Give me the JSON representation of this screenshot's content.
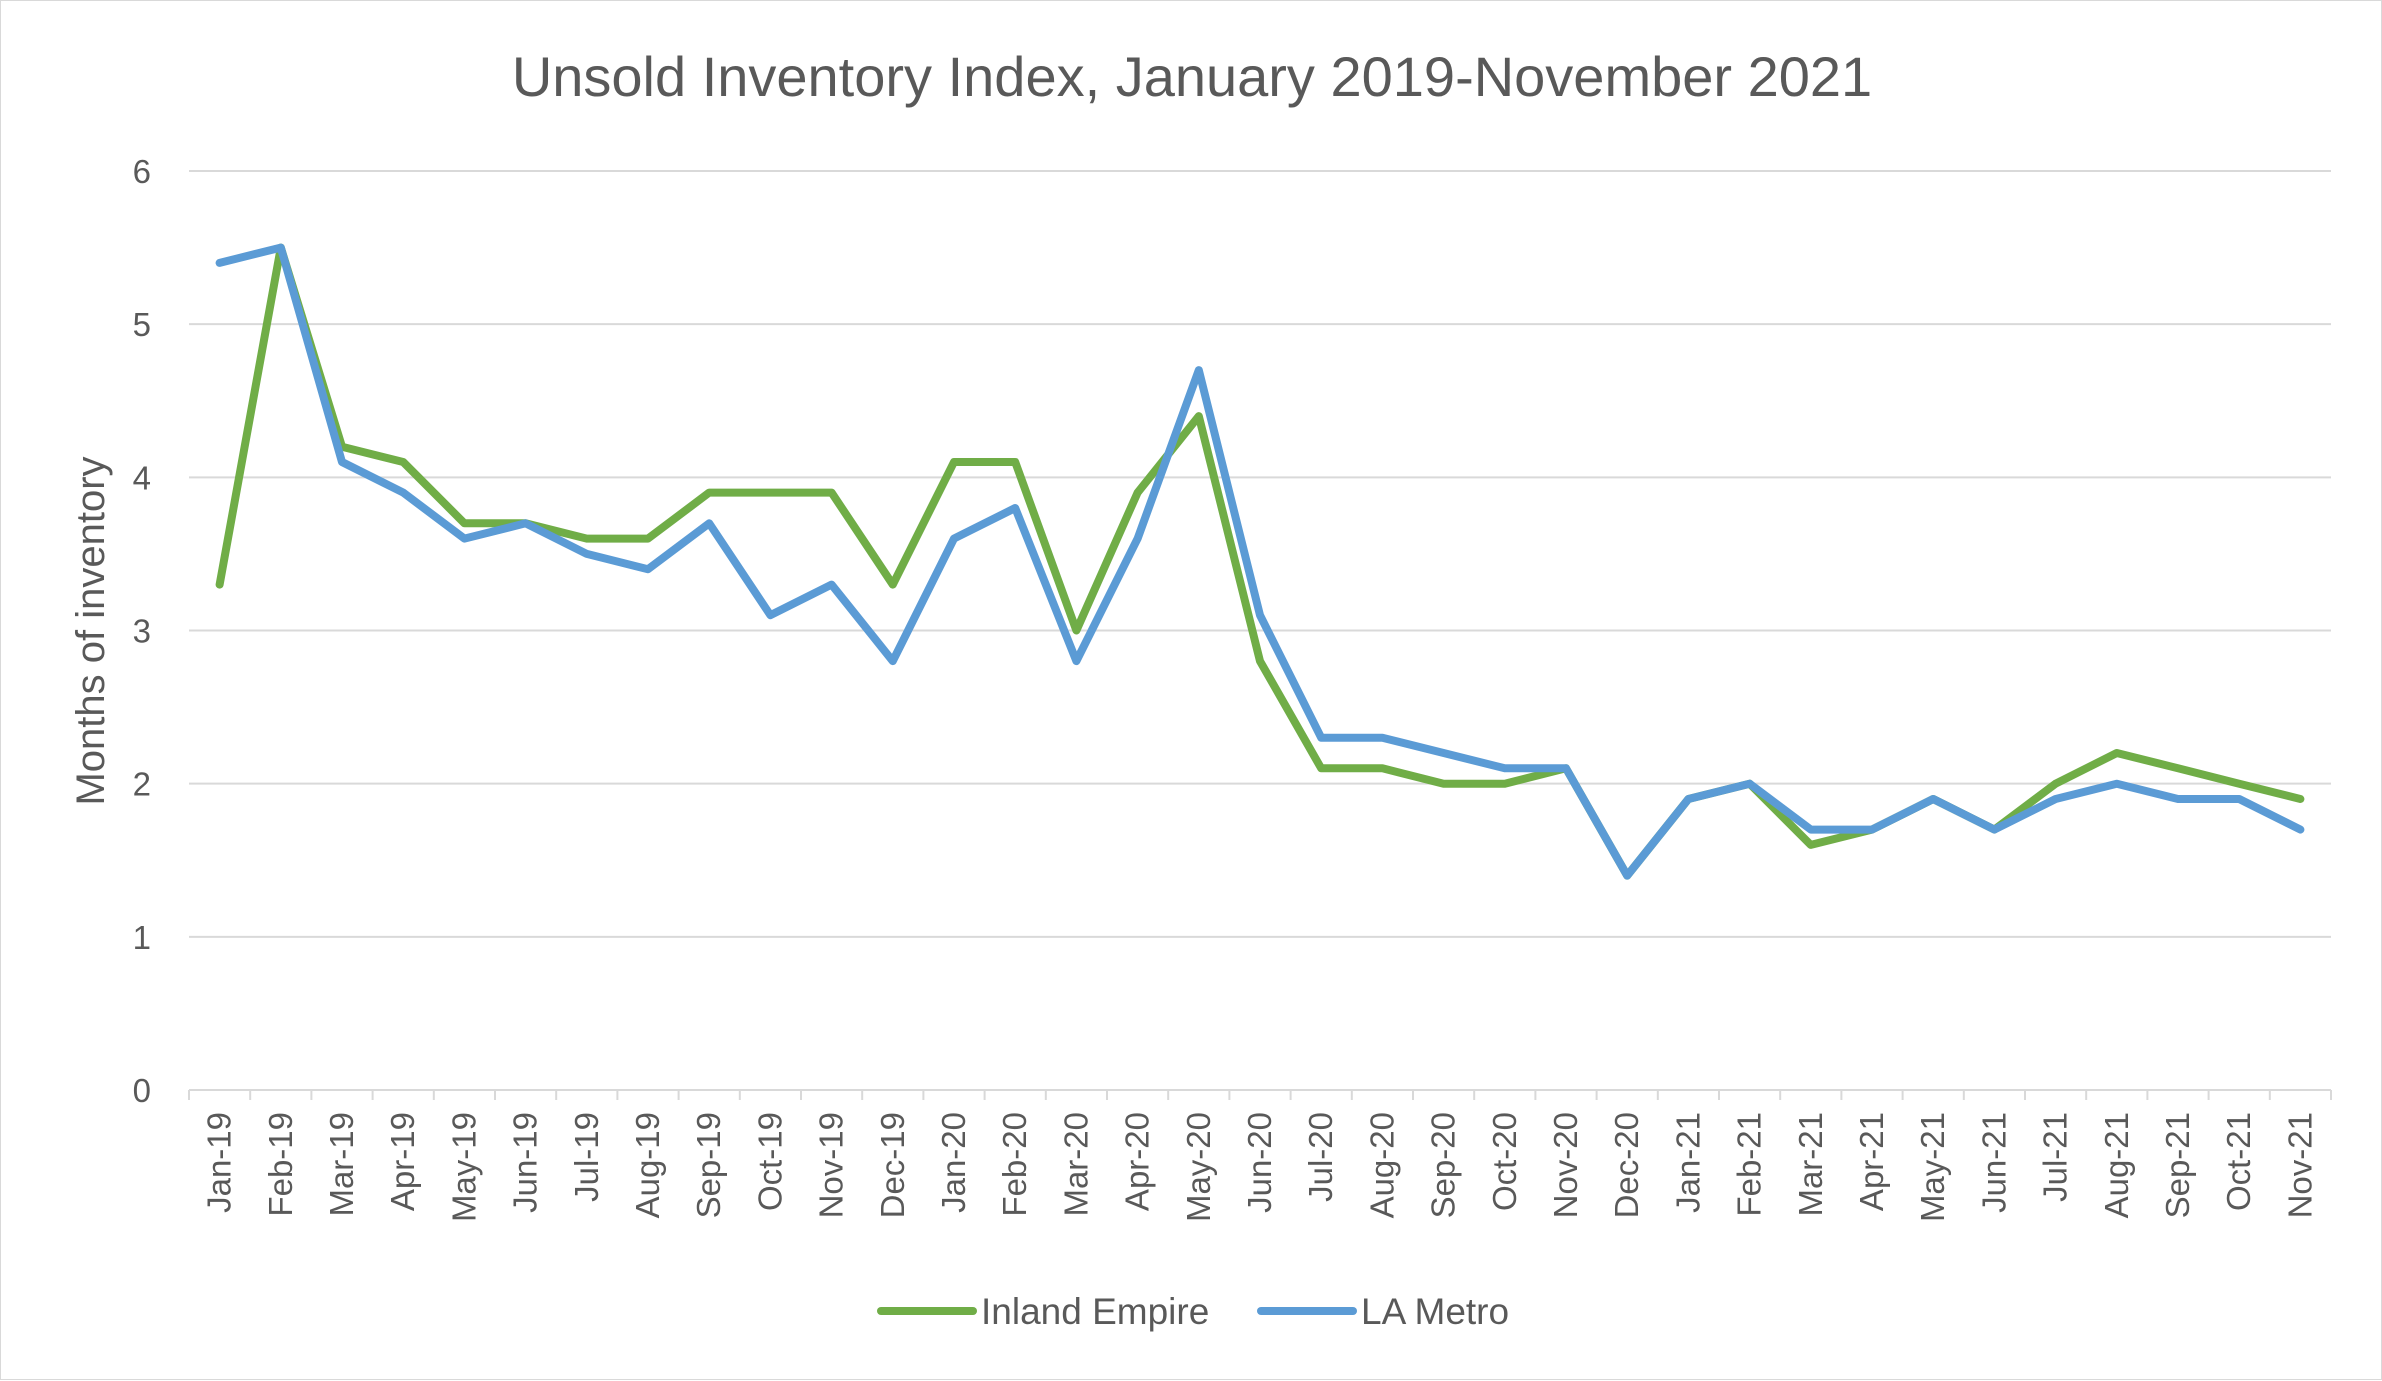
{
  "chart_data": {
    "type": "line",
    "title": "Unsold Inventory Index, January 2019-November 2021",
    "xlabel": "",
    "ylabel": "Months of inventory",
    "ylim": [
      0,
      6
    ],
    "yticks": [
      "0",
      "1",
      "2",
      "3",
      "4",
      "5",
      "6"
    ],
    "grid": true,
    "legend_position": "bottom",
    "categories": [
      "Jan-19",
      "Feb-19",
      "Mar-19",
      "Apr-19",
      "May-19",
      "Jun-19",
      "Jul-19",
      "Aug-19",
      "Sep-19",
      "Oct-19",
      "Nov-19",
      "Dec-19",
      "Jan-20",
      "Feb-20",
      "Mar-20",
      "Apr-20",
      "May-20",
      "Jun-20",
      "Jul-20",
      "Aug-20",
      "Sep-20",
      "Oct-20",
      "Nov-20",
      "Dec-20",
      "Jan-21",
      "Feb-21",
      "Mar-21",
      "Apr-21",
      "May-21",
      "Jun-21",
      "Jul-21",
      "Aug-21",
      "Sep-21",
      "Oct-21",
      "Nov-21"
    ],
    "series": [
      {
        "name": "Inland Empire",
        "color": "#70ad47",
        "values": [
          3.3,
          5.5,
          4.2,
          4.1,
          3.7,
          3.7,
          3.6,
          3.6,
          3.9,
          3.9,
          3.9,
          3.3,
          4.1,
          4.1,
          3.0,
          3.9,
          4.4,
          2.8,
          2.1,
          2.1,
          2.0,
          2.0,
          2.1,
          1.4,
          1.9,
          2.0,
          1.6,
          1.7,
          1.9,
          1.7,
          2.0,
          2.2,
          2.1,
          2.0,
          1.9
        ]
      },
      {
        "name": "LA Metro",
        "color": "#5b9bd5",
        "values": [
          5.4,
          5.5,
          4.1,
          3.9,
          3.6,
          3.7,
          3.5,
          3.4,
          3.7,
          3.1,
          3.3,
          2.8,
          3.6,
          3.8,
          2.8,
          3.6,
          4.7,
          3.1,
          2.3,
          2.3,
          2.2,
          2.1,
          2.1,
          1.4,
          1.9,
          2.0,
          1.7,
          1.7,
          1.9,
          1.7,
          1.9,
          2.0,
          1.9,
          1.9,
          1.7
        ]
      }
    ]
  }
}
